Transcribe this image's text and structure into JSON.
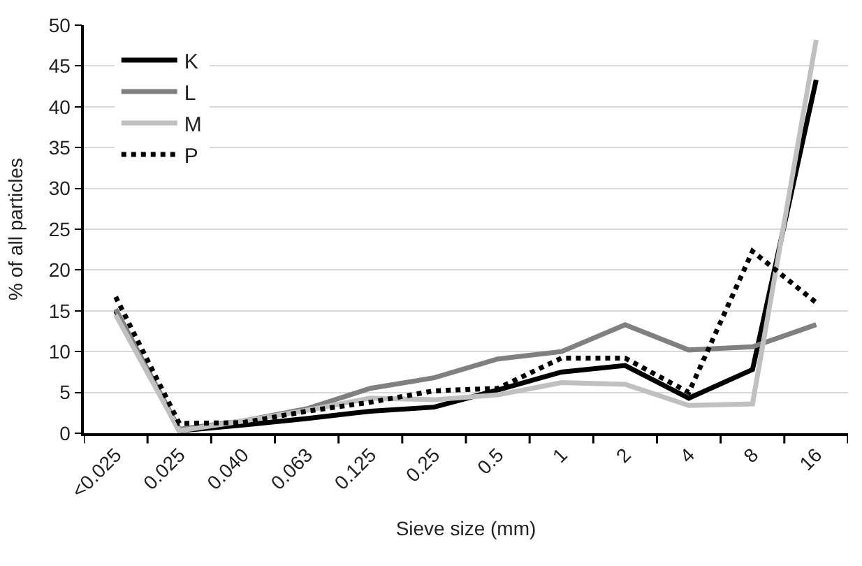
{
  "chart_data": {
    "type": "line",
    "xlabel": "Sieve size (mm)",
    "ylabel": "% of all particles",
    "categories": [
      "<0.025",
      "0.025",
      "0.040",
      "0.063",
      "0.125",
      "0.25",
      "0.5",
      "1",
      "2",
      "4",
      "8",
      "16"
    ],
    "series": [
      {
        "name": "K",
        "color": "#000000",
        "line_style": "solid",
        "values": [
          15.0,
          0.3,
          1.0,
          1.8,
          2.7,
          3.2,
          5.3,
          7.5,
          8.3,
          4.3,
          7.8,
          43.3
        ]
      },
      {
        "name": "L",
        "color": "#808080",
        "line_style": "solid",
        "values": [
          15.2,
          0.5,
          1.5,
          3.0,
          5.5,
          6.8,
          9.1,
          10.0,
          13.3,
          10.2,
          10.6,
          13.3
        ]
      },
      {
        "name": "M",
        "color": "#c0c0c0",
        "line_style": "solid",
        "values": [
          14.5,
          0.3,
          1.5,
          2.8,
          4.3,
          4.1,
          4.7,
          6.2,
          6.0,
          3.4,
          3.6,
          48.2
        ]
      },
      {
        "name": "P",
        "color": "#000000",
        "line_style": "dotted",
        "values": [
          16.7,
          1.2,
          1.3,
          2.7,
          3.8,
          5.2,
          5.5,
          9.2,
          9.2,
          5.0,
          22.3,
          16.0
        ]
      }
    ],
    "ylim": [
      0,
      50
    ],
    "yticks": [
      0,
      5,
      10,
      15,
      20,
      25,
      30,
      35,
      40,
      45,
      50
    ],
    "grid": "y",
    "legend": "top left",
    "marker": "none"
  }
}
